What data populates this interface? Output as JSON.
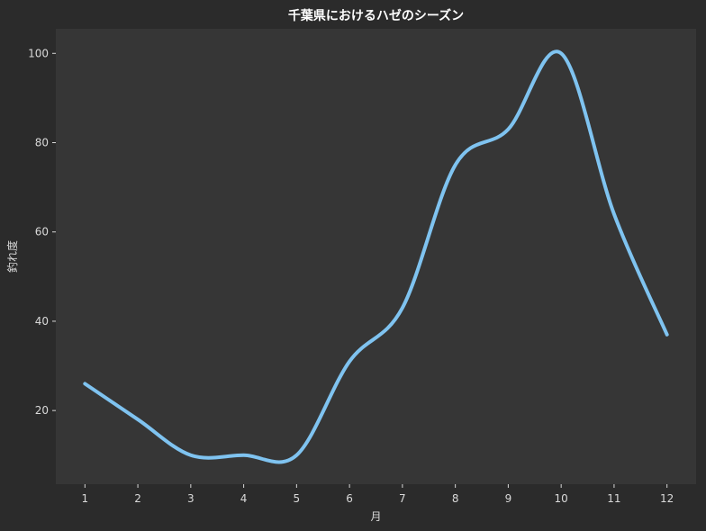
{
  "chart_data": {
    "type": "line",
    "title": "千葉県におけるハゼのシーズン",
    "xlabel": "月",
    "ylabel": "釣れ度",
    "x": [
      1,
      2,
      3,
      4,
      5,
      6,
      7,
      8,
      9,
      10,
      11,
      12
    ],
    "series": [
      {
        "values": [
          26,
          18,
          10,
          10,
          10,
          31,
          43,
          75,
          83,
          100,
          64,
          37
        ]
      }
    ],
    "xlim": [
      0.45,
      12.55
    ],
    "ylim": [
      3.5,
      105.5
    ],
    "xticks": [
      1,
      2,
      3,
      4,
      5,
      6,
      7,
      8,
      9,
      10,
      11,
      12
    ],
    "yticks": [
      20,
      40,
      60,
      80,
      100
    ],
    "grid": false,
    "legend": "none",
    "colors": {
      "background": "#2b2b2b",
      "plot_background": "#363636",
      "line": "#7fc3f0",
      "text": "#d9d9d9",
      "title": "#ffffff"
    }
  }
}
